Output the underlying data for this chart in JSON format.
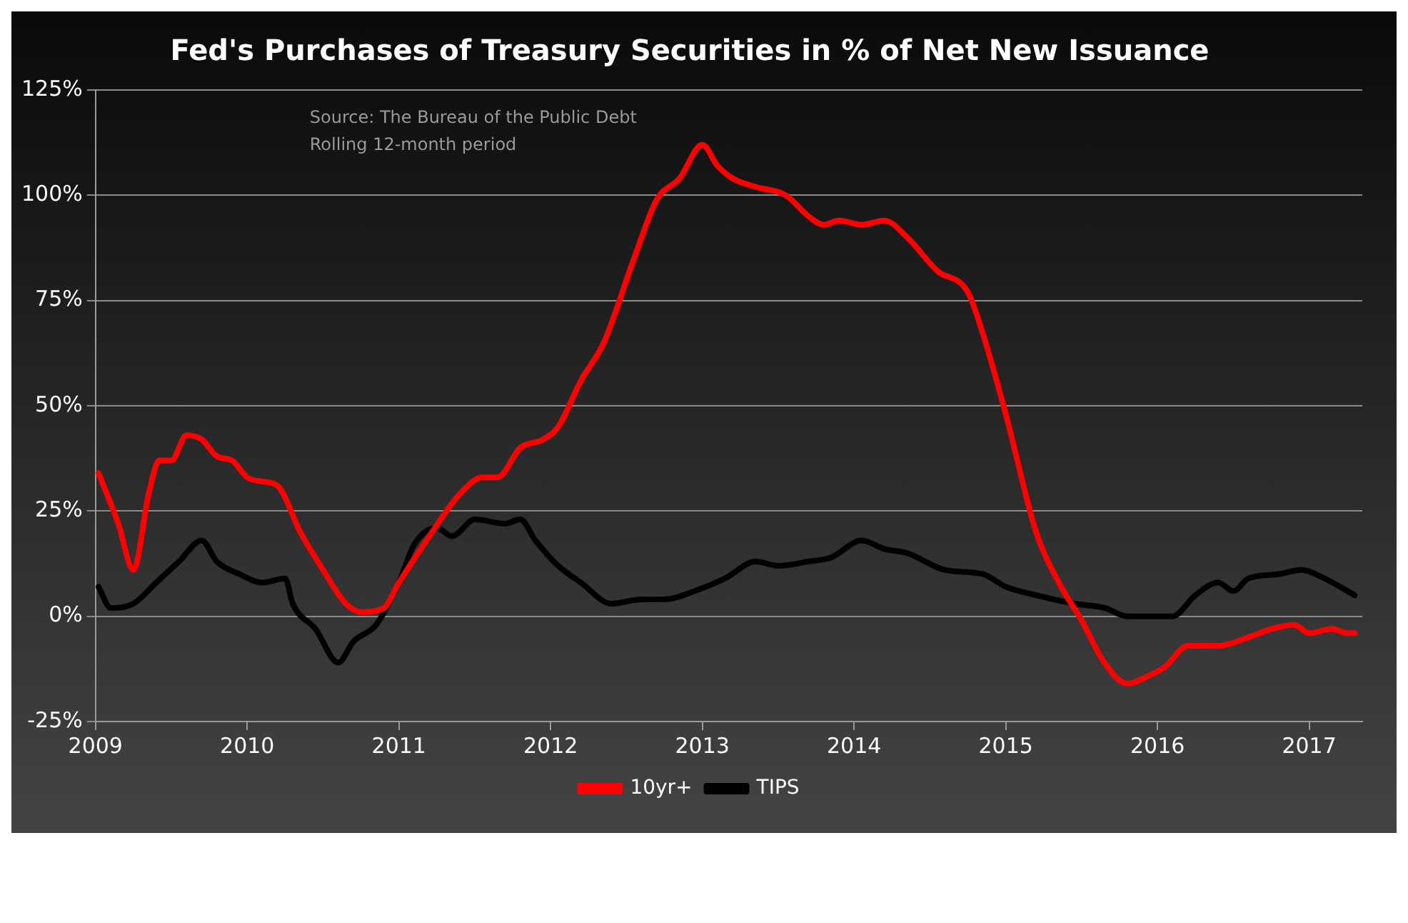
{
  "chart_data": {
    "type": "line",
    "title": "Fed's Purchases of Treasury Securities in % of Net New Issuance",
    "annotations": [
      "Source: The Bureau of the Public Debt",
      "Rolling 12-month period"
    ],
    "xlim": [
      2009,
      2017.35
    ],
    "xticks": [
      2009,
      2010,
      2011,
      2012,
      2013,
      2014,
      2015,
      2016,
      2017
    ],
    "ylim": [
      -25,
      125
    ],
    "yticks": [
      {
        "value": -25,
        "label": "-25%"
      },
      {
        "value": 0,
        "label": "0%"
      },
      {
        "value": 25,
        "label": "25%"
      },
      {
        "value": 50,
        "label": "50%"
      },
      {
        "value": 75,
        "label": "75%"
      },
      {
        "value": 100,
        "label": "100%"
      },
      {
        "value": 125,
        "label": "125%"
      }
    ],
    "grid": "y",
    "legend": "bottom",
    "marker": "none",
    "line_style": "solid",
    "series": [
      {
        "name": "10yr+",
        "color": "#ff0000",
        "x": [
          2009.02,
          2009.15,
          2009.25,
          2009.35,
          2009.42,
          2009.5,
          2009.6,
          2009.7,
          2009.8,
          2009.9,
          2010.0,
          2010.1,
          2010.2,
          2010.35,
          2010.5,
          2010.65,
          2010.75,
          2010.9,
          2011.0,
          2011.2,
          2011.4,
          2011.55,
          2011.65,
          2011.8,
          2011.95,
          2012.05,
          2012.2,
          2012.35,
          2012.55,
          2012.7,
          2012.85,
          2013.0,
          2013.1,
          2013.2,
          2013.35,
          2013.55,
          2013.7,
          2013.8,
          2013.9,
          2014.05,
          2014.2,
          2014.35,
          2014.55,
          2014.75,
          2014.85,
          2015.0,
          2015.2,
          2015.35,
          2015.5,
          2015.65,
          2015.8,
          2015.95,
          2016.05,
          2016.2,
          2016.4,
          2016.6,
          2016.75,
          2016.9,
          2017.0,
          2017.15,
          2017.25,
          2017.3
        ],
        "values": [
          34,
          22,
          11,
          29,
          37,
          37,
          43,
          42,
          38,
          37,
          33,
          32,
          31,
          20,
          11,
          3,
          1,
          2,
          8,
          19,
          29,
          33,
          33,
          40,
          42,
          45,
          56,
          65,
          85,
          99,
          104,
          112,
          107,
          104,
          102,
          100,
          95,
          93,
          94,
          93,
          94,
          90,
          82,
          77,
          67,
          48,
          20,
          8,
          -1,
          -11,
          -16,
          -14,
          -12,
          -7,
          -7,
          -5,
          -3,
          -2,
          -4,
          -3,
          -4,
          -4
        ]
      },
      {
        "name": "TIPS",
        "color": "#000000",
        "x": [
          2009.02,
          2009.1,
          2009.25,
          2009.4,
          2009.55,
          2009.7,
          2009.8,
          2009.95,
          2010.1,
          2010.25,
          2010.3,
          2010.45,
          2010.6,
          2010.7,
          2010.85,
          2011.0,
          2011.1,
          2011.25,
          2011.35,
          2011.5,
          2011.7,
          2011.8,
          2011.9,
          2012.05,
          2012.2,
          2012.4,
          2012.6,
          2012.75,
          2012.95,
          2013.15,
          2013.35,
          2013.5,
          2013.7,
          2013.85,
          2014.05,
          2014.2,
          2014.35,
          2014.6,
          2014.85,
          2015.0,
          2015.2,
          2015.45,
          2015.65,
          2015.8,
          2016.0,
          2016.1,
          2016.25,
          2016.4,
          2016.5,
          2016.6,
          2016.8,
          2016.95,
          2017.1,
          2017.3
        ],
        "values": [
          7,
          2,
          3,
          8,
          13,
          18,
          13,
          10,
          8,
          9,
          3,
          -3,
          -11,
          -6,
          -2,
          8,
          17,
          21,
          19,
          23,
          22,
          23,
          18,
          12,
          8,
          3,
          4,
          4,
          6,
          9,
          13,
          12,
          13,
          14,
          18,
          16,
          15,
          11,
          10,
          7,
          5,
          3,
          2,
          0,
          0,
          0,
          5,
          8,
          6,
          9,
          10,
          11,
          9,
          5
        ]
      }
    ]
  }
}
